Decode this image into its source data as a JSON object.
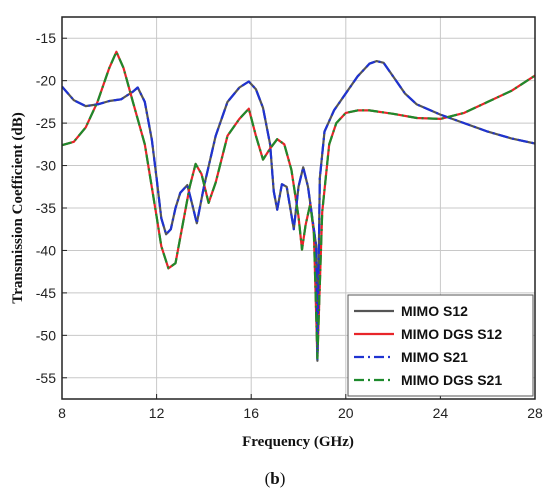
{
  "chart_data": {
    "type": "line",
    "xlabel": "Frequency (GHz)",
    "ylabel": "Transmission Coefficient (dB)",
    "xlim": [
      8,
      28
    ],
    "ylim": [
      -57.5,
      -12.5
    ],
    "x_ticks": [
      8,
      12,
      16,
      20,
      24,
      28
    ],
    "y_ticks": [
      -15,
      -20,
      -25,
      -30,
      -35,
      -40,
      -45,
      -50,
      -55
    ],
    "grid": true,
    "legend_position": "bottom-right",
    "series": [
      {
        "name": "MIMO S12",
        "color": "#555555",
        "dash": "solid",
        "x": [
          8,
          8.5,
          9,
          9.5,
          10,
          10.5,
          11,
          11.2,
          11.5,
          11.8,
          12,
          12.2,
          12.4,
          12.6,
          12.8,
          13,
          13.3,
          13.5,
          13.7,
          14,
          14.5,
          15,
          15.5,
          15.9,
          16.2,
          16.5,
          16.8,
          16.95,
          17.1,
          17.3,
          17.5,
          17.8,
          18,
          18.2,
          18.4,
          18.55,
          18.75,
          18.8,
          18.9,
          19.1,
          19.5,
          20,
          20.5,
          21,
          21.3,
          21.6,
          22,
          22.5,
          23,
          23.5,
          24,
          25,
          26,
          27,
          28
        ],
        "y": [
          -20.7,
          -22.3,
          -23,
          -22.8,
          -22.4,
          -22.2,
          -21.3,
          -20.8,
          -22.5,
          -27,
          -31.5,
          -36.2,
          -38.1,
          -37.5,
          -35,
          -33.2,
          -32.3,
          -34.5,
          -36.8,
          -32.5,
          -26.5,
          -22.5,
          -20.8,
          -20.1,
          -21,
          -23.2,
          -27.5,
          -33,
          -35.2,
          -32.2,
          -32.5,
          -37.5,
          -32.5,
          -30.2,
          -32.5,
          -35.5,
          -39.5,
          -53,
          -31.5,
          -26,
          -23.5,
          -21.5,
          -19.5,
          -18,
          -17.7,
          -17.9,
          -19.5,
          -21.5,
          -22.8,
          -23.4,
          -24,
          -25,
          -26,
          -26.8,
          -27.4
        ]
      },
      {
        "name": "MIMO DGS S12",
        "color": "#e8252a",
        "dash": "solid",
        "x": [
          8,
          8.5,
          9,
          9.5,
          10,
          10.3,
          10.6,
          11,
          11.5,
          12,
          12.2,
          12.5,
          12.8,
          13.1,
          13.4,
          13.65,
          13.9,
          14.2,
          14.5,
          15,
          15.5,
          15.9,
          16.2,
          16.5,
          16.8,
          17.1,
          17.4,
          17.7,
          18,
          18.15,
          18.3,
          18.5,
          18.65,
          18.8,
          19,
          19.3,
          19.6,
          20,
          20.5,
          21,
          22,
          23,
          24,
          25,
          26,
          27,
          28
        ],
        "y": [
          -27.6,
          -27.2,
          -25.5,
          -22.5,
          -18.5,
          -16.6,
          -18.5,
          -22.5,
          -27.5,
          -36,
          -39.5,
          -42.1,
          -41.5,
          -37,
          -32.5,
          -29.8,
          -31,
          -34.4,
          -32,
          -26.5,
          -24.5,
          -23.3,
          -26.5,
          -29.3,
          -28,
          -26.9,
          -27.5,
          -30.5,
          -36,
          -39.9,
          -37,
          -34.5,
          -38,
          -52.7,
          -35.5,
          -27.5,
          -25,
          -23.8,
          -23.5,
          -23.5,
          -23.9,
          -24.4,
          -24.5,
          -23.8,
          -22.5,
          -21.2,
          -19.4
        ]
      },
      {
        "name": "MIMO S21",
        "color": "#1f33d1",
        "dash": "dashdot",
        "x": [
          8,
          8.5,
          9,
          9.5,
          10,
          10.5,
          11,
          11.2,
          11.5,
          11.8,
          12,
          12.2,
          12.4,
          12.6,
          12.8,
          13,
          13.3,
          13.5,
          13.7,
          14,
          14.5,
          15,
          15.5,
          15.9,
          16.2,
          16.5,
          16.8,
          16.95,
          17.1,
          17.3,
          17.5,
          17.8,
          18,
          18.2,
          18.4,
          18.55,
          18.75,
          18.8,
          18.9,
          19.1,
          19.5,
          20,
          20.5,
          21,
          21.3,
          21.6,
          22,
          22.5,
          23,
          23.5,
          24,
          25,
          26,
          27,
          28
        ],
        "y": [
          -20.7,
          -22.3,
          -23,
          -22.8,
          -22.4,
          -22.2,
          -21.3,
          -20.8,
          -22.5,
          -27,
          -31.5,
          -36.2,
          -38.1,
          -37.5,
          -35,
          -33.2,
          -32.3,
          -34.5,
          -36.8,
          -32.5,
          -26.5,
          -22.5,
          -20.8,
          -20.1,
          -21,
          -23.2,
          -27.5,
          -33,
          -35.2,
          -32.2,
          -32.5,
          -37.5,
          -32.5,
          -30.2,
          -32.5,
          -35.5,
          -39.5,
          -53,
          -31.5,
          -26,
          -23.5,
          -21.5,
          -19.5,
          -18,
          -17.7,
          -17.9,
          -19.5,
          -21.5,
          -22.8,
          -23.4,
          -24,
          -25,
          -26,
          -26.8,
          -27.4
        ]
      },
      {
        "name": "MIMO DGS S21",
        "color": "#1e8a2c",
        "dash": "dashdot",
        "x": [
          8,
          8.5,
          9,
          9.5,
          10,
          10.3,
          10.6,
          11,
          11.5,
          12,
          12.2,
          12.5,
          12.8,
          13.1,
          13.4,
          13.65,
          13.9,
          14.2,
          14.5,
          15,
          15.5,
          15.9,
          16.2,
          16.5,
          16.8,
          17.1,
          17.4,
          17.7,
          18,
          18.15,
          18.3,
          18.5,
          18.65,
          18.8,
          19,
          19.3,
          19.6,
          20,
          20.5,
          21,
          22,
          23,
          24,
          25,
          26,
          27,
          28
        ],
        "y": [
          -27.6,
          -27.2,
          -25.5,
          -22.5,
          -18.5,
          -16.6,
          -18.5,
          -22.5,
          -27.5,
          -36,
          -39.5,
          -42.1,
          -41.5,
          -37,
          -32.5,
          -29.8,
          -31,
          -34.4,
          -32,
          -26.5,
          -24.5,
          -23.3,
          -26.5,
          -29.3,
          -28,
          -26.9,
          -27.5,
          -30.5,
          -36,
          -39.9,
          -37,
          -34.5,
          -38,
          -52.7,
          -35.5,
          -27.5,
          -25,
          -23.8,
          -23.5,
          -23.5,
          -23.9,
          -24.4,
          -24.5,
          -23.8,
          -22.5,
          -21.2,
          -19.4
        ]
      }
    ]
  },
  "caption_open": "(",
  "caption_letter": "b",
  "caption_close": ")"
}
